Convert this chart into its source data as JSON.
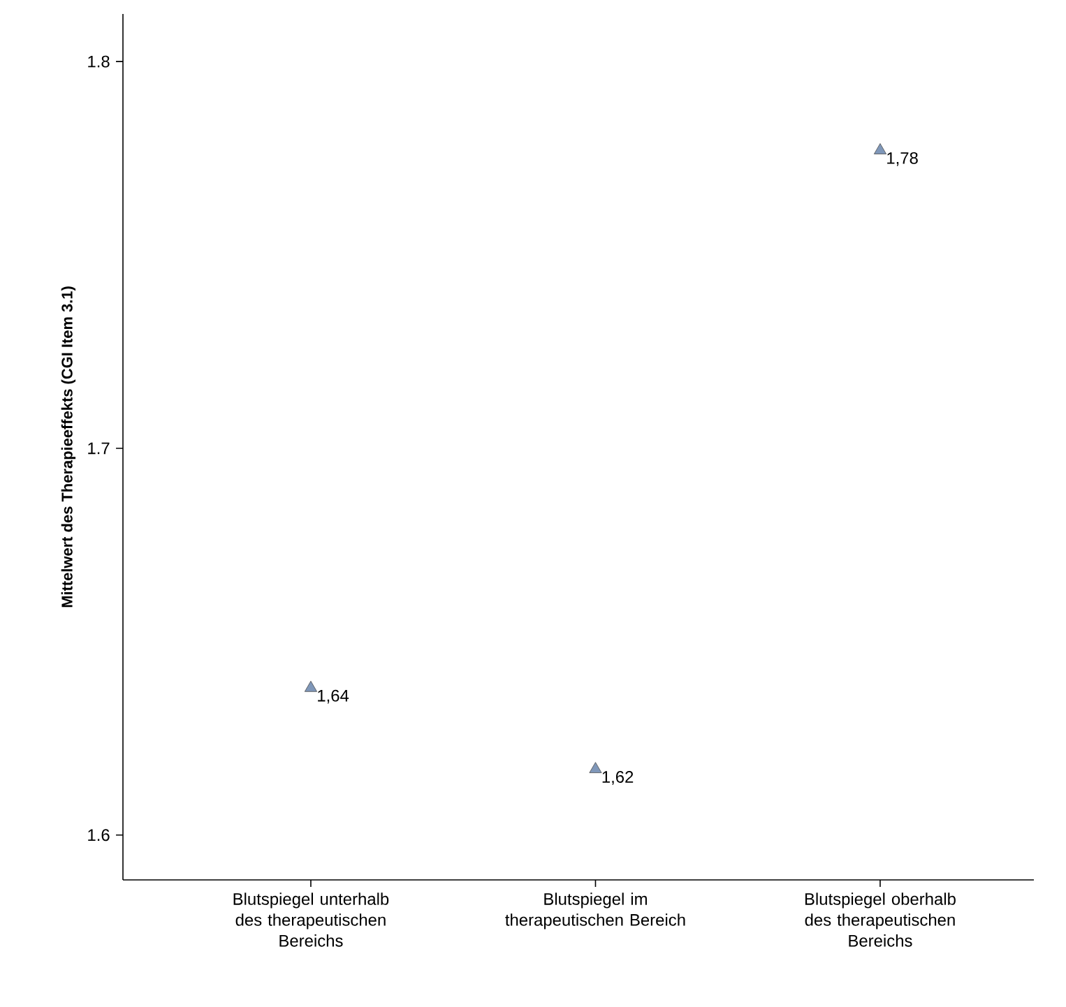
{
  "chart_data": {
    "type": "scatter",
    "ylabel": "Mittelwert des Therapieeffekts (CGI Item 3.1)",
    "categories": [
      "Blutspiegel unterhalb des therapeutischen Bereichs",
      "Blutspiegel im therapeutischen Bereich",
      "Blutspiegel oberhalb des therapeutischen Bereichs"
    ],
    "values": [
      1.638,
      1.617,
      1.777
    ],
    "value_labels": [
      "1,64",
      "1,62",
      "1,78"
    ],
    "color": "#7f97b9",
    "marker": "triangle",
    "ylim": [
      1.5884,
      1.8123
    ],
    "yticks": [
      1.6,
      1.7,
      1.8
    ]
  }
}
